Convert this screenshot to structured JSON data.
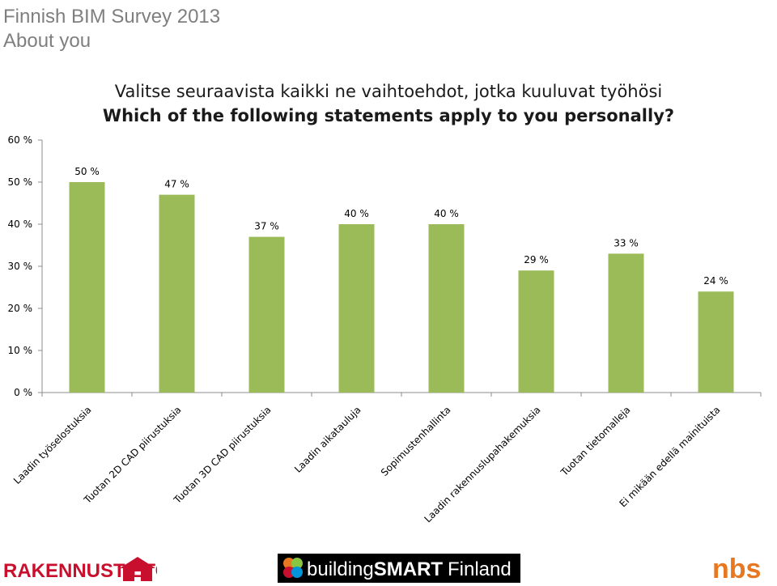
{
  "header": {
    "line1": "Finnish BIM Survey 2013",
    "line2": "About you"
  },
  "chart_data": {
    "type": "bar",
    "title": "Valitse seuraavista kaikki ne vaihtoehdot, jotka kuuluvat työhösi",
    "subtitle": "Which of the following statements apply to you personally?",
    "categories": [
      "Laadin työselostuksia",
      "Tuotan 2D CAD piirustuksia",
      "Tuotan 3D CAD piirustuksia",
      "Laadin aikatauluja",
      "Sopimustenhallinta",
      "Laadin rakennuslupahakemuksia",
      "Tuotan tietomalleja",
      "Ei mikään edellä mainituista"
    ],
    "values": [
      50,
      47,
      37,
      40,
      40,
      29,
      33,
      24
    ],
    "value_labels": [
      "50 %",
      "47 %",
      "37 %",
      "40 %",
      "40 %",
      "29 %",
      "33 %",
      "24 %"
    ],
    "yticks": [
      "0 %",
      "10 %",
      "20 %",
      "30 %",
      "40 %",
      "50 %",
      "60 %"
    ],
    "ylim": [
      0,
      60
    ],
    "grid": false,
    "legend": "none",
    "bar_color": "#9bbb59"
  },
  "footer": {
    "logo_left": "RAKENNUSTIETO",
    "logo_center_a": "building",
    "logo_center_b": "SMART",
    "logo_center_c": "Finland",
    "logo_right": "nbs",
    "brand_red": "#c8102e",
    "brand_green": "#88c540",
    "brand_orange": "#e87722"
  }
}
